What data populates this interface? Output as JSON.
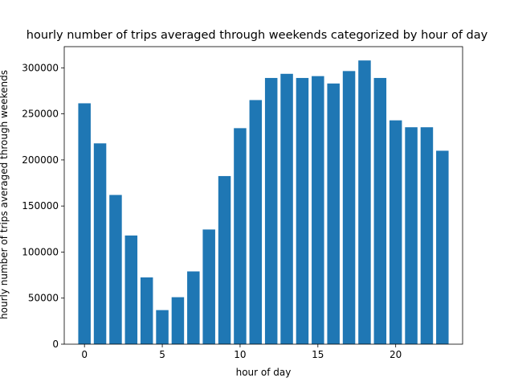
{
  "chart_data": {
    "type": "bar",
    "title": "hourly number of trips averaged through weekends categorized by hour of day",
    "xlabel": "hour of day",
    "ylabel": "hourly number of trips averaged through weekends",
    "categories": [
      0,
      1,
      2,
      3,
      4,
      5,
      6,
      7,
      8,
      9,
      10,
      11,
      12,
      13,
      14,
      15,
      16,
      17,
      18,
      19,
      20,
      21,
      22,
      23
    ],
    "values": [
      261500,
      218000,
      162000,
      118000,
      72500,
      37000,
      51000,
      79000,
      124500,
      182500,
      234500,
      265000,
      289000,
      293500,
      289000,
      291000,
      283000,
      296500,
      308000,
      289000,
      243000,
      235500,
      235500,
      210000
    ],
    "xlim": [
      -1.3,
      24.3
    ],
    "ylim": [
      0,
      323000
    ],
    "xticks": [
      0,
      5,
      10,
      15,
      20
    ],
    "xtick_labels": [
      "0",
      "5",
      "10",
      "15",
      "20"
    ],
    "yticks": [
      0,
      50000,
      100000,
      150000,
      200000,
      250000,
      300000
    ],
    "ytick_labels": [
      "0",
      "50000",
      "100000",
      "150000",
      "200000",
      "250000",
      "300000"
    ],
    "bar_color": "#1f77b4",
    "grid": false,
    "legend": "none"
  }
}
